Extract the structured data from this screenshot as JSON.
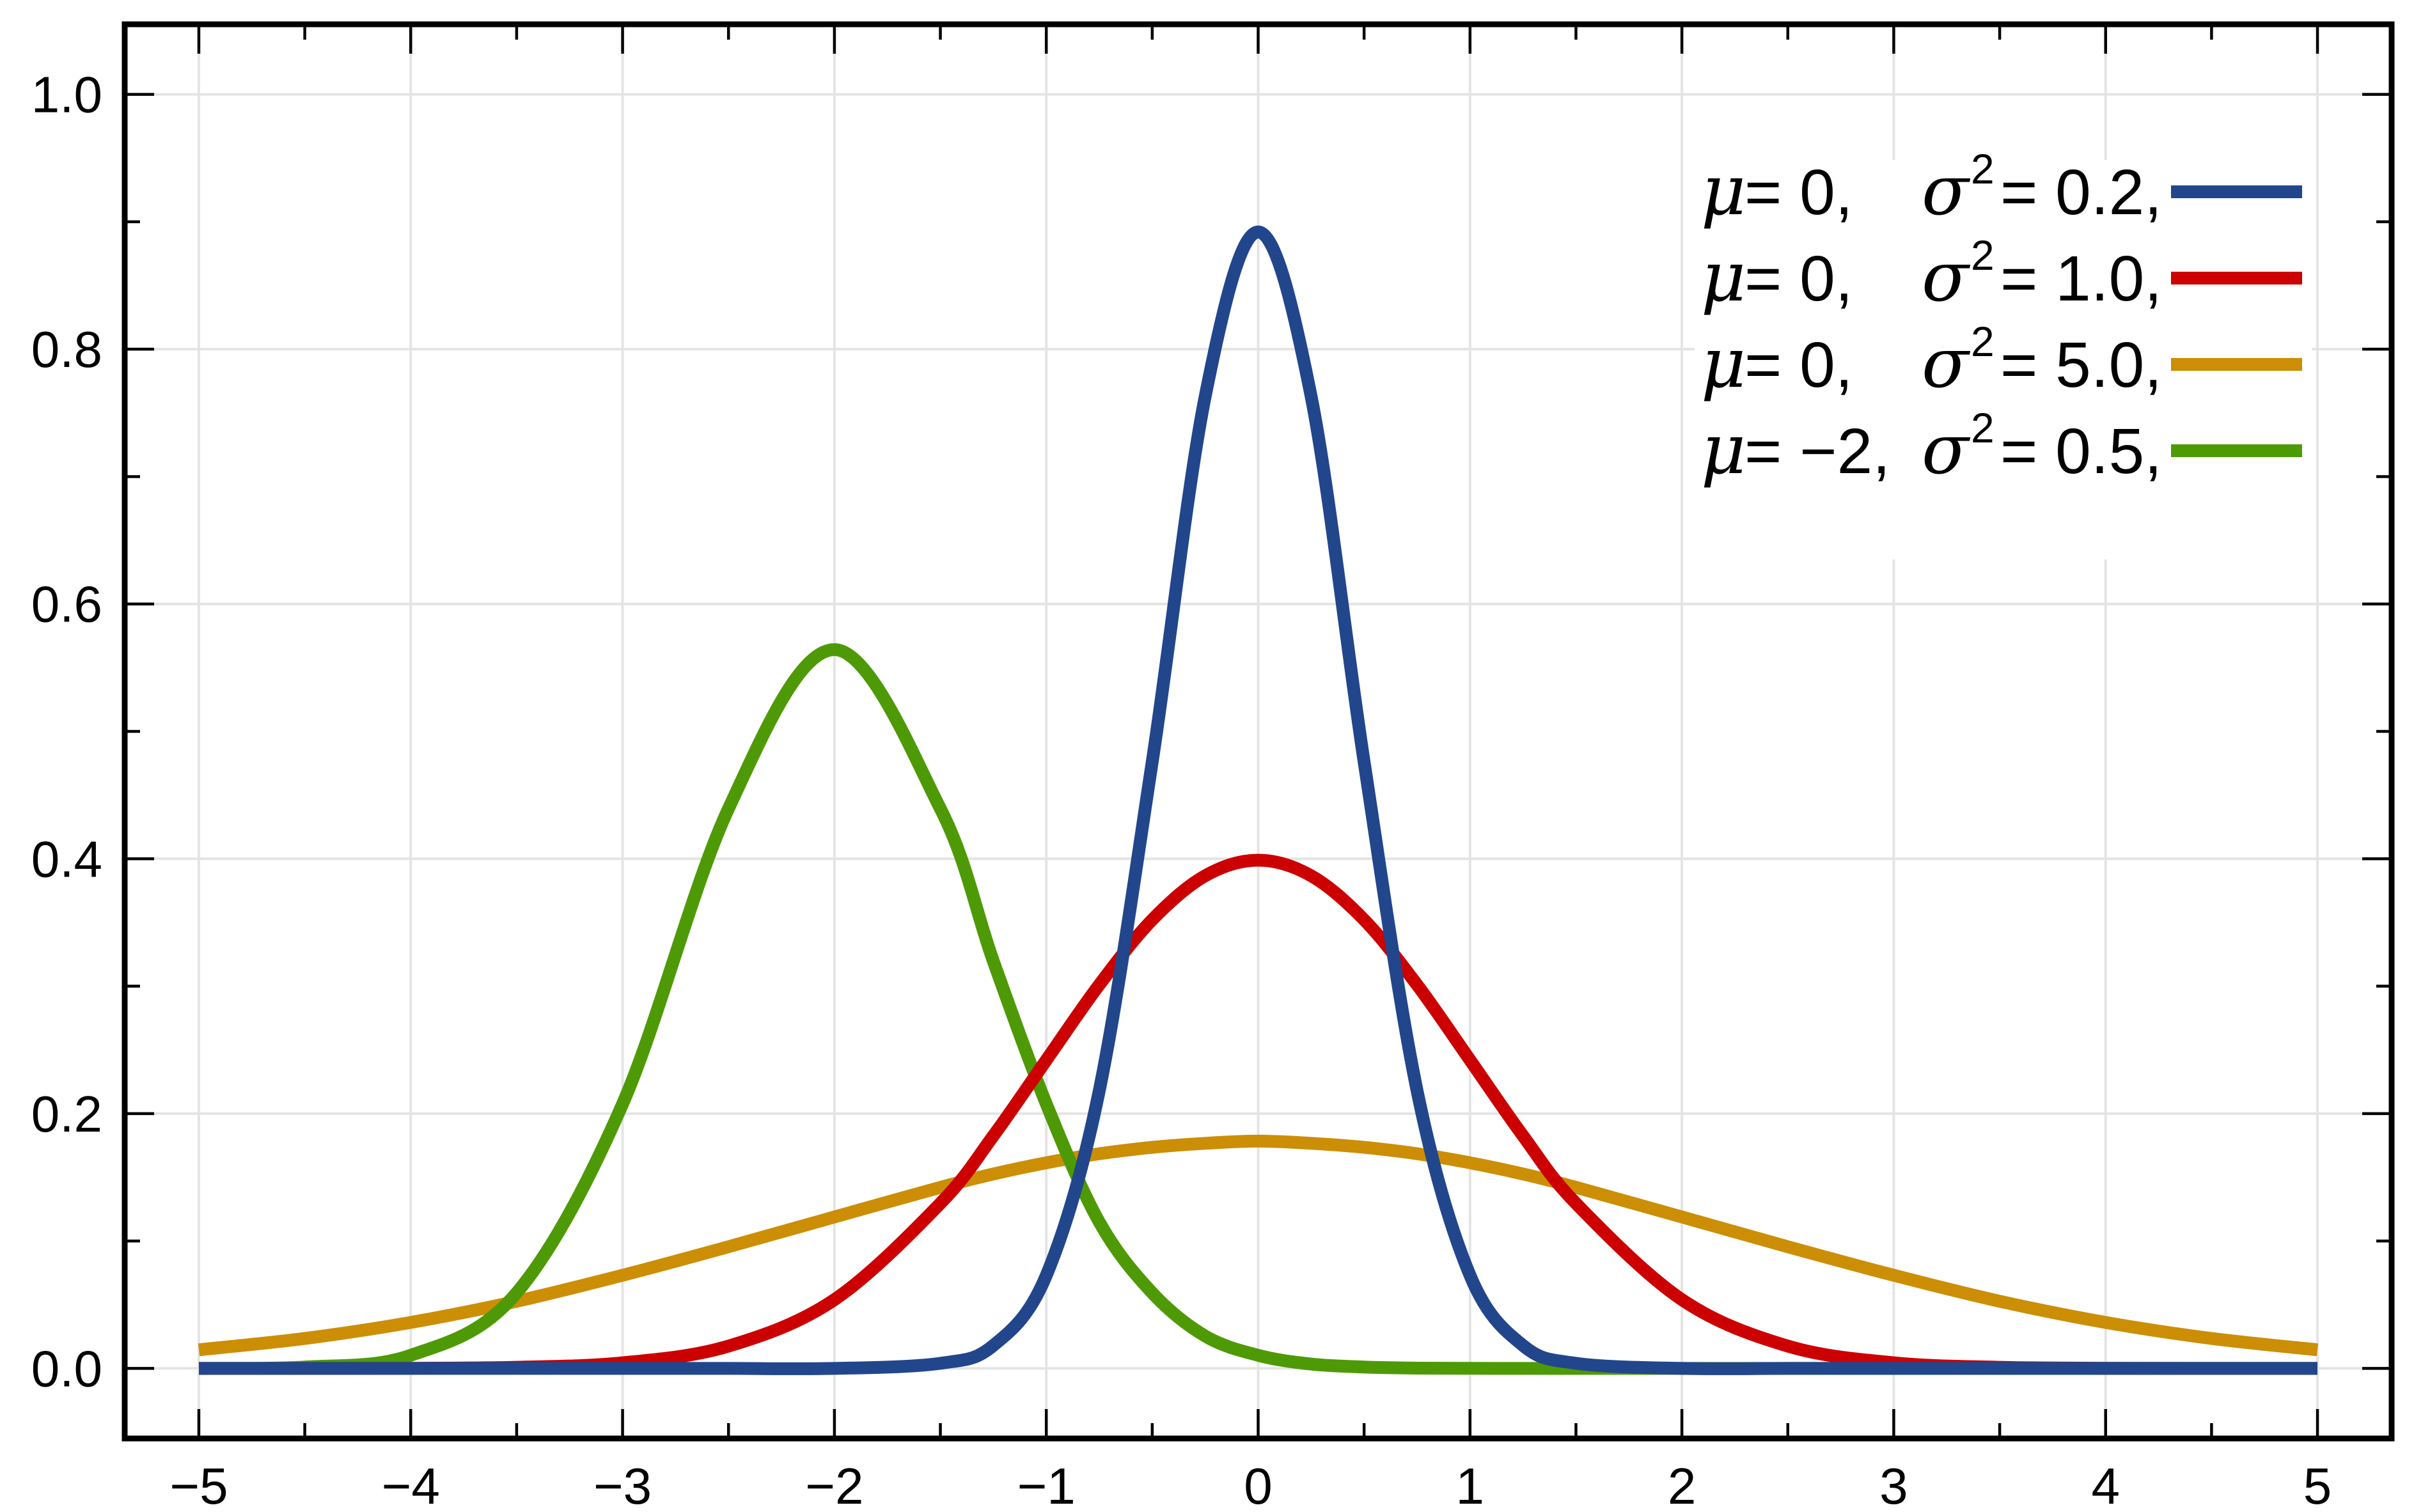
{
  "chart_data": {
    "type": "line",
    "title": "",
    "xlabel": "",
    "ylabel": "",
    "xlim": [
      -5.35,
      5.35
    ],
    "ylim": [
      -0.055,
      1.055
    ],
    "grid": true,
    "legend_position": "top-right",
    "x_ticks": [
      -5,
      -4,
      -3,
      -2,
      -1,
      0,
      1,
      2,
      3,
      4,
      5
    ],
    "x_tick_labels": [
      "−5",
      "−4",
      "−3",
      "−2",
      "−1",
      "0",
      "1",
      "2",
      "3",
      "4",
      "5"
    ],
    "y_ticks": [
      0.0,
      0.2,
      0.4,
      0.6,
      0.8,
      1.0
    ],
    "y_tick_labels": [
      "0.0",
      "0.2",
      "0.4",
      "0.6",
      "0.8",
      "1.0"
    ],
    "series": [
      {
        "mu_label": "μ",
        "mu_eq": "= 0,",
        "sigma_label": "σ",
        "sigma_sup": "2",
        "sigma_eq": "= 0.2,",
        "mean": 0,
        "variance": 0.2,
        "color": "#22468c",
        "x": [
          -5,
          -4.5,
          -4,
          -3.5,
          -3,
          -2.5,
          -2,
          -1.5,
          -1.25,
          -1,
          -0.75,
          -0.5,
          -0.25,
          0,
          0.25,
          0.5,
          0.75,
          1,
          1.25,
          1.5,
          2,
          2.5,
          3,
          3.5,
          4,
          4.5,
          5
        ],
        "values": [
          0.0,
          0.0,
          0.0,
          0.0,
          0.0,
          0.0,
          0.0,
          0.004,
          0.018,
          0.073,
          0.218,
          0.476,
          0.763,
          0.892,
          0.763,
          0.476,
          0.218,
          0.073,
          0.018,
          0.004,
          0.0,
          0.0,
          0.0,
          0.0,
          0.0,
          0.0,
          0.0
        ]
      },
      {
        "mu_label": "μ",
        "mu_eq": "= 0,",
        "sigma_label": "σ",
        "sigma_sup": "2",
        "sigma_eq": "= 1.0,",
        "mean": 0,
        "variance": 1.0,
        "color": "#cc0000",
        "x": [
          -5,
          -4.5,
          -4,
          -3.5,
          -3,
          -2.5,
          -2,
          -1.5,
          -1.25,
          -1,
          -0.75,
          -0.5,
          -0.25,
          0,
          0.25,
          0.5,
          0.75,
          1,
          1.25,
          1.5,
          2,
          2.5,
          3,
          3.5,
          4,
          4.5,
          5
        ],
        "values": [
          0.0,
          0.0,
          0.0001,
          0.0009,
          0.0044,
          0.0175,
          0.054,
          0.1295,
          0.1826,
          0.242,
          0.3011,
          0.3521,
          0.3867,
          0.3989,
          0.3867,
          0.3521,
          0.3011,
          0.242,
          0.1826,
          0.1295,
          0.054,
          0.0175,
          0.0044,
          0.0009,
          0.0001,
          0.0,
          0.0
        ]
      },
      {
        "mu_label": "μ",
        "mu_eq": "= 0,",
        "sigma_label": "σ",
        "sigma_sup": "2",
        "sigma_eq": "= 5.0,",
        "mean": 0,
        "variance": 5.0,
        "color": "#cc8e05",
        "x": [
          -5,
          -4.5,
          -4,
          -3.5,
          -3,
          -2.5,
          -2,
          -1.5,
          -1.25,
          -1,
          -0.75,
          -0.5,
          -0.25,
          0,
          0.25,
          0.5,
          0.75,
          1,
          1.25,
          1.5,
          2,
          2.5,
          3,
          3.5,
          4,
          4.5,
          5
        ],
        "values": [
          0.0146,
          0.0235,
          0.0361,
          0.0527,
          0.0731,
          0.0955,
          0.1189,
          0.1421,
          0.1526,
          0.1614,
          0.1685,
          0.1735,
          0.1767,
          0.1784,
          0.1767,
          0.1735,
          0.1685,
          0.1614,
          0.1526,
          0.1421,
          0.1189,
          0.0955,
          0.0731,
          0.0527,
          0.0361,
          0.0235,
          0.0146
        ]
      },
      {
        "mu_label": "μ",
        "mu_eq": "= −2,",
        "sigma_label": "σ",
        "sigma_sup": "2",
        "sigma_eq": "= 0.5,",
        "mean": -2,
        "variance": 0.5,
        "color": "#4e9a06",
        "x": [
          -5,
          -4.5,
          -4,
          -3.5,
          -3,
          -2.5,
          -2,
          -1.5,
          -1.25,
          -1,
          -0.75,
          -0.5,
          -0.25,
          0,
          0.25,
          0.5,
          0.75,
          1,
          1.25,
          1.5,
          2,
          2.5,
          3,
          3.5,
          4,
          4.5,
          5
        ],
        "values": [
          0.0,
          0.0011,
          0.0103,
          0.0593,
          0.2076,
          0.4394,
          0.5642,
          0.4394,
          0.3196,
          0.2076,
          0.1149,
          0.0593,
          0.0254,
          0.0103,
          0.0034,
          0.0011,
          0.0002,
          0.0001,
          0.0,
          0.0,
          0.0,
          0.0,
          0.0,
          0.0,
          0.0,
          0.0,
          0.0
        ]
      }
    ]
  }
}
